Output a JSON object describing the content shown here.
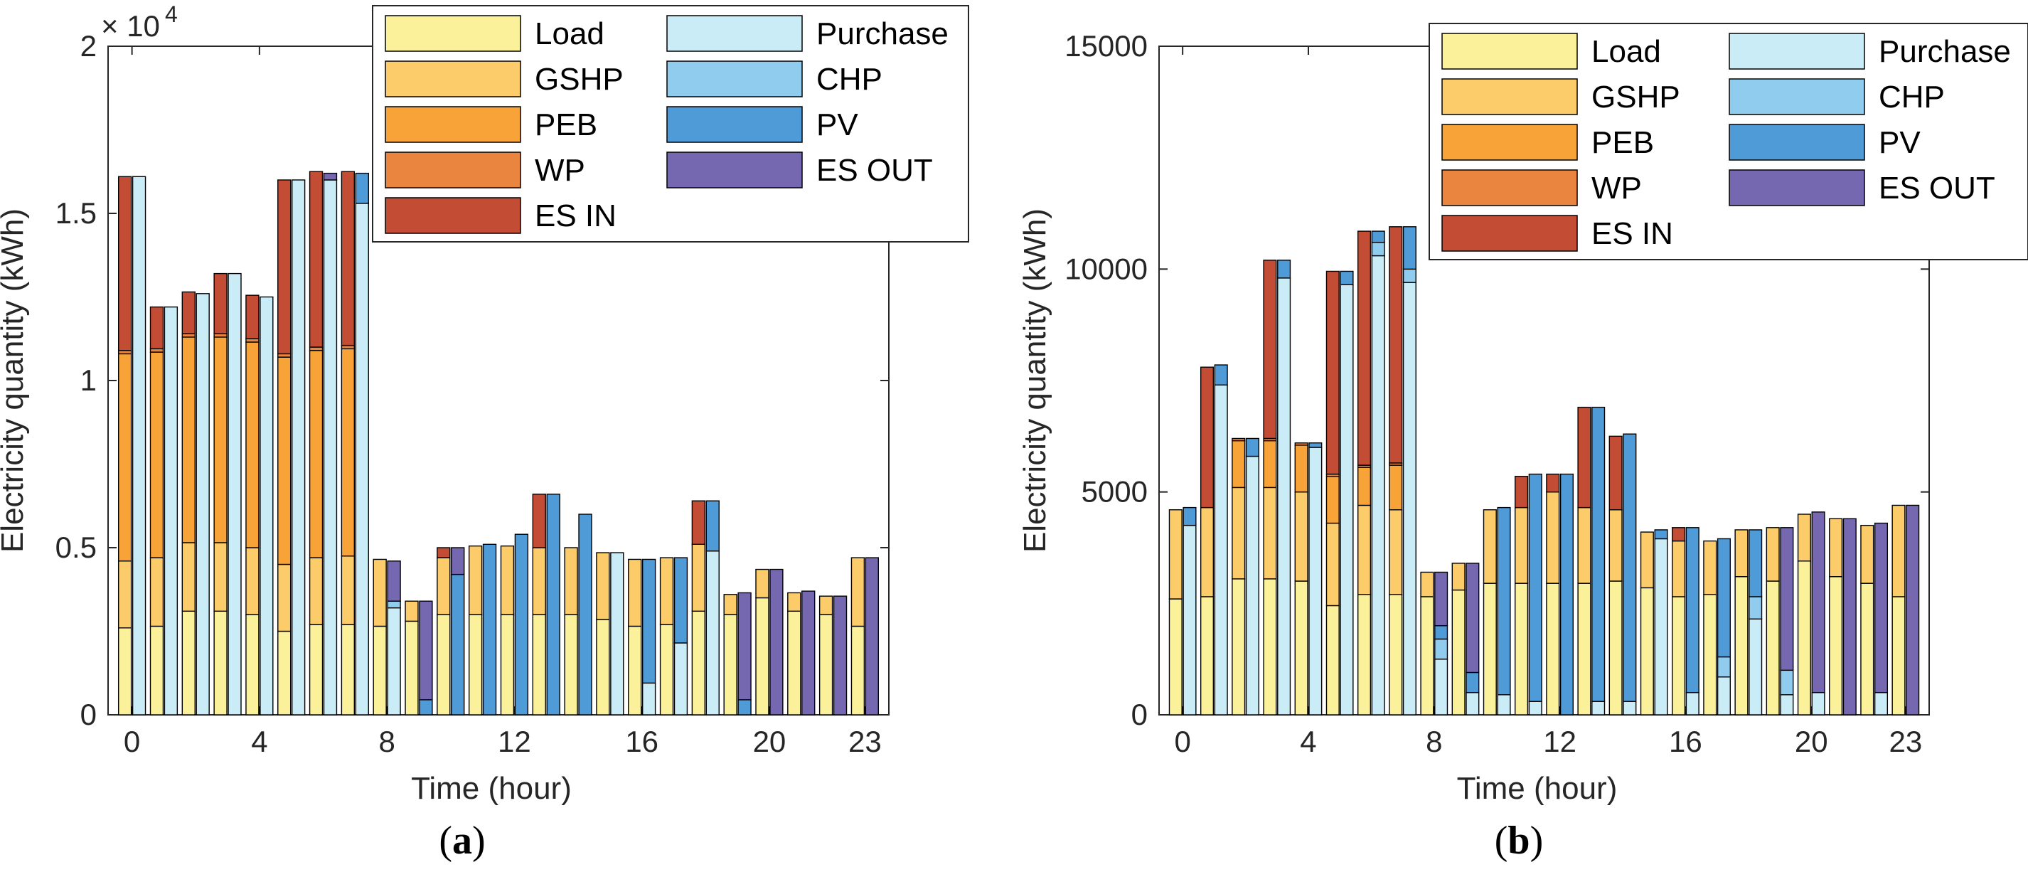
{
  "colors": {
    "Load": "#FBF19B",
    "GSHP": "#FCCB6A",
    "PEB": "#F8A338",
    "WP": "#EA8540",
    "ES IN": "#C24D34",
    "Purchase": "#C9ECF7",
    "CHP": "#8FCCEE",
    "PV": "#4F9BD7",
    "ES OUT": "#7568B1"
  },
  "chart_data": [
    {
      "id": "a",
      "type": "bar",
      "stacked": true,
      "caption": "(a)",
      "caption_letter": "a",
      "title": "",
      "xlabel": "Time (hour)",
      "ylabel": "Electricity quantity (kWh)",
      "ylim": [
        0,
        20000
      ],
      "yticks": [
        0,
        5000,
        10000,
        15000,
        20000
      ],
      "ytick_labels": [
        "0",
        "0.5",
        "1",
        "1.5",
        "2"
      ],
      "y_exponent_label": "× 10",
      "y_exponent_power": "4",
      "xticks": [
        0,
        4,
        8,
        12,
        16,
        20,
        23
      ],
      "xtick_labels": [
        "0",
        "4",
        "8",
        "12",
        "16",
        "20",
        "23"
      ],
      "hours": [
        0,
        1,
        2,
        3,
        4,
        5,
        6,
        7,
        8,
        9,
        10,
        11,
        12,
        13,
        14,
        15,
        16,
        17,
        18,
        19,
        20,
        21,
        22,
        23
      ],
      "legend_position": "top-right",
      "demand": {
        "components": [
          "Load",
          "GSHP",
          "PEB",
          "WP",
          "ES IN"
        ],
        "values": [
          [
            2600,
            2000,
            6200,
            100,
            5200
          ],
          [
            2650,
            2050,
            6150,
            100,
            1250
          ],
          [
            3100,
            2050,
            6150,
            100,
            1250
          ],
          [
            3100,
            2050,
            6150,
            100,
            1800
          ],
          [
            3000,
            2000,
            6150,
            100,
            1300
          ],
          [
            2500,
            2000,
            6200,
            100,
            5200
          ],
          [
            2700,
            2000,
            6200,
            100,
            5250
          ],
          [
            2700,
            2050,
            6200,
            100,
            5200
          ],
          [
            2650,
            2000,
            0,
            0,
            0
          ],
          [
            2800,
            600,
            0,
            0,
            0
          ],
          [
            3000,
            1700,
            0,
            0,
            300
          ],
          [
            3000,
            2050,
            0,
            0,
            0
          ],
          [
            3000,
            2050,
            0,
            0,
            0
          ],
          [
            3000,
            2000,
            0,
            0,
            1600
          ],
          [
            3000,
            2000,
            0,
            0,
            0
          ],
          [
            2850,
            2000,
            0,
            0,
            0
          ],
          [
            2650,
            2000,
            0,
            0,
            0
          ],
          [
            2700,
            2000,
            0,
            0,
            0
          ],
          [
            3100,
            2000,
            0,
            0,
            1300
          ],
          [
            3000,
            600,
            0,
            0,
            0
          ],
          [
            3500,
            850,
            0,
            0,
            0
          ],
          [
            3100,
            550,
            0,
            0,
            0
          ],
          [
            3000,
            550,
            0,
            0,
            0
          ],
          [
            2650,
            2050,
            0,
            0,
            0
          ]
        ]
      },
      "supply": {
        "components": [
          "Purchase",
          "CHP",
          "PV",
          "ES OUT"
        ],
        "values": [
          [
            16100,
            0,
            0,
            0
          ],
          [
            12200,
            0,
            0,
            0
          ],
          [
            12600,
            0,
            0,
            0
          ],
          [
            13200,
            0,
            0,
            0
          ],
          [
            12500,
            0,
            0,
            0
          ],
          [
            16000,
            0,
            0,
            0
          ],
          [
            16000,
            0,
            0,
            200
          ],
          [
            15300,
            0,
            900,
            0
          ],
          [
            3200,
            200,
            0,
            1200
          ],
          [
            0,
            0,
            450,
            2950
          ],
          [
            0,
            0,
            4200,
            800
          ],
          [
            0,
            0,
            5100,
            0
          ],
          [
            0,
            0,
            5400,
            0
          ],
          [
            0,
            0,
            6600,
            0
          ],
          [
            0,
            0,
            6000,
            0
          ],
          [
            4850,
            0,
            0,
            0
          ],
          [
            950,
            0,
            3700,
            0
          ],
          [
            2150,
            0,
            2550,
            0
          ],
          [
            4900,
            0,
            1500,
            0
          ],
          [
            0,
            0,
            450,
            3200
          ],
          [
            0,
            0,
            0,
            4350
          ],
          [
            0,
            0,
            0,
            3700
          ],
          [
            0,
            0,
            0,
            3550
          ],
          [
            0,
            0,
            0,
            4700
          ]
        ]
      }
    },
    {
      "id": "b",
      "type": "bar",
      "stacked": true,
      "caption": "(b)",
      "caption_letter": "b",
      "title": "",
      "xlabel": "Time (hour)",
      "ylabel": "Electricity quantity (kWh)",
      "ylim": [
        0,
        15000
      ],
      "yticks": [
        0,
        5000,
        10000,
        15000
      ],
      "ytick_labels": [
        "0",
        "5000",
        "10000",
        "15000"
      ],
      "xticks": [
        0,
        4,
        8,
        12,
        16,
        20,
        23
      ],
      "xtick_labels": [
        "0",
        "4",
        "8",
        "12",
        "16",
        "20",
        "23"
      ],
      "hours": [
        0,
        1,
        2,
        3,
        4,
        5,
        6,
        7,
        8,
        9,
        10,
        11,
        12,
        13,
        14,
        15,
        16,
        17,
        18,
        19,
        20,
        21,
        22,
        23
      ],
      "legend_position": "top-right",
      "demand": {
        "components": [
          "Load",
          "GSHP",
          "PEB",
          "WP",
          "ES IN"
        ],
        "values": [
          [
            2600,
            2000,
            0,
            0,
            0
          ],
          [
            2650,
            2000,
            0,
            0,
            3150
          ],
          [
            3050,
            2050,
            1050,
            50,
            0
          ],
          [
            3050,
            2050,
            1050,
            50,
            4000
          ],
          [
            3000,
            2000,
            1050,
            50,
            0
          ],
          [
            2450,
            1850,
            1050,
            50,
            4550
          ],
          [
            2700,
            2000,
            850,
            50,
            5250
          ],
          [
            2700,
            1900,
            1000,
            50,
            5300
          ],
          [
            2650,
            550,
            0,
            0,
            0
          ],
          [
            2800,
            600,
            0,
            0,
            0
          ],
          [
            2950,
            1650,
            0,
            0,
            0
          ],
          [
            2950,
            1700,
            0,
            0,
            700
          ],
          [
            2950,
            2050,
            0,
            0,
            400
          ],
          [
            2950,
            1700,
            0,
            0,
            2250
          ],
          [
            3000,
            1600,
            0,
            0,
            1650
          ],
          [
            2850,
            1250,
            0,
            0,
            0
          ],
          [
            2650,
            1250,
            0,
            0,
            300
          ],
          [
            2700,
            1200,
            0,
            0,
            0
          ],
          [
            3100,
            1050,
            0,
            0,
            0
          ],
          [
            3000,
            1200,
            0,
            0,
            0
          ],
          [
            3450,
            1050,
            0,
            0,
            0
          ],
          [
            3100,
            1300,
            0,
            0,
            0
          ],
          [
            2950,
            1300,
            0,
            0,
            0
          ],
          [
            2650,
            2050,
            0,
            0,
            0
          ]
        ]
      },
      "supply": {
        "components": [
          "Purchase",
          "CHP",
          "PV",
          "ES OUT"
        ],
        "values": [
          [
            4250,
            0,
            400,
            0
          ],
          [
            7400,
            0,
            450,
            0
          ],
          [
            5800,
            0,
            400,
            0
          ],
          [
            9800,
            0,
            400,
            0
          ],
          [
            6000,
            0,
            100,
            0
          ],
          [
            9650,
            0,
            300,
            0
          ],
          [
            10300,
            300,
            250,
            0
          ],
          [
            9700,
            300,
            950,
            0
          ],
          [
            1250,
            450,
            300,
            1200
          ],
          [
            500,
            0,
            450,
            2450
          ],
          [
            450,
            0,
            4200,
            0
          ],
          [
            300,
            0,
            5100,
            0
          ],
          [
            0,
            0,
            5400,
            0
          ],
          [
            300,
            0,
            6600,
            0
          ],
          [
            300,
            0,
            6000,
            0
          ],
          [
            3950,
            0,
            200,
            0
          ],
          [
            500,
            0,
            3700,
            0
          ],
          [
            850,
            450,
            2650,
            0
          ],
          [
            2150,
            500,
            1500,
            0
          ],
          [
            450,
            550,
            0,
            3200
          ],
          [
            500,
            0,
            0,
            4050
          ],
          [
            0,
            0,
            0,
            4400
          ],
          [
            500,
            0,
            0,
            3800
          ],
          [
            0,
            0,
            0,
            4700
          ]
        ]
      }
    }
  ]
}
